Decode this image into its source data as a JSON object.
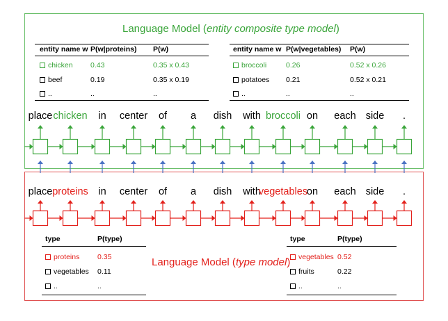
{
  "top_model": {
    "title_prefix": "Language Model (",
    "title_italic": "entity composite type model",
    "title_suffix": ")",
    "table_left": {
      "headers": [
        "entity name w",
        "P(w|proteins)",
        "P(w)"
      ],
      "rows": [
        {
          "name": "chicken",
          "p_cond": "0.43",
          "p": "0.35 x 0.43",
          "highlight": true
        },
        {
          "name": "beef",
          "p_cond": "0.19",
          "p": "0.35 x 0.19",
          "highlight": false
        },
        {
          "name": "..",
          "p_cond": "..",
          "p": "..",
          "highlight": false
        }
      ]
    },
    "table_right": {
      "headers": [
        "entity name w",
        "P(w|vegetables)",
        "P(w)"
      ],
      "rows": [
        {
          "name": "broccoli",
          "p_cond": "0.26",
          "p": "0.52 x 0.26",
          "highlight": true
        },
        {
          "name": "potatoes",
          "p_cond": "0.21",
          "p": "0.52 x 0.21",
          "highlight": false
        },
        {
          "name": "..",
          "p_cond": "..",
          "p": "..",
          "highlight": false
        }
      ]
    },
    "words": [
      "place",
      "chicken",
      "in",
      "center",
      "of",
      "a",
      "dish",
      "with",
      "broccoli",
      "on",
      "each",
      "side",
      "."
    ],
    "highlight_words": [
      1,
      8
    ]
  },
  "bottom_model": {
    "title_prefix": "Language Model (",
    "title_italic": "type model",
    "title_suffix": ")",
    "words": [
      "place",
      "proteins",
      "in",
      "center",
      "of",
      "a",
      "dish",
      "with",
      "vegetables",
      "on",
      "each",
      "side",
      "."
    ],
    "highlight_words": [
      1,
      8
    ],
    "table_left": {
      "headers": [
        "type",
        "P(type)"
      ],
      "rows": [
        {
          "name": "proteins",
          "p": "0.35",
          "highlight": true
        },
        {
          "name": "vegetables",
          "p": "0.11",
          "highlight": false
        },
        {
          "name": "..",
          "p": "..",
          "highlight": false
        }
      ]
    },
    "table_right": {
      "headers": [
        "type",
        "P(type)"
      ],
      "rows": [
        {
          "name": "vegetables",
          "p": "0.52",
          "highlight": true
        },
        {
          "name": "fruits",
          "p": "0.22",
          "highlight": false
        },
        {
          "name": "..",
          "p": "..",
          "highlight": false
        }
      ]
    }
  },
  "colors": {
    "green": "#3aa53a",
    "green_frame": "#6bbf6b",
    "red": "#e3201b",
    "blue": "#4a72c4"
  }
}
